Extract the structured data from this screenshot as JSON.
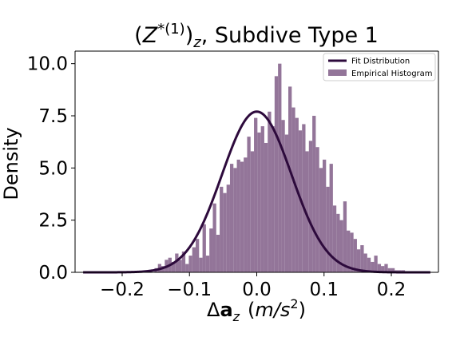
{
  "chart_data": {
    "type": "histogram",
    "title": {
      "lhs_open": "(",
      "lhs_var": "Z",
      "lhs_sup": "*(1)",
      "lhs_close": ")",
      "lhs_sub": "z",
      "rest": ", Subdive Type 1"
    },
    "xlabel": {
      "delta": "Δ",
      "bold": "a",
      "sub": "z",
      "units_open": "(",
      "units_m": "m",
      "units_slash": "/",
      "units_s": "s",
      "units_exp": "2",
      "units_close": ")"
    },
    "ylabel": "Density",
    "xlim": [
      -0.27,
      0.27
    ],
    "ylim": [
      0,
      10.6
    ],
    "xticks": [
      -0.2,
      -0.1,
      0.0,
      0.1,
      0.2
    ],
    "xtick_labels": [
      "−0.2",
      "−0.1",
      "0.0",
      "0.1",
      "0.2"
    ],
    "yticks": [
      0.0,
      2.5,
      5.0,
      7.5,
      10.0
    ],
    "ytick_labels": [
      "0.0",
      "2.5",
      "5.0",
      "7.5",
      "10.0"
    ],
    "grid": false,
    "legend_position": "top-right",
    "bar_color": "#937599",
    "line_color": "#2d0a3c",
    "series": [
      {
        "name": "Fit Distribution",
        "kind": "line",
        "distribution": "normal",
        "mean": 0.0,
        "std": 0.0518,
        "x_range": [
          -0.258,
          0.258
        ]
      },
      {
        "name": "Empirical Histogram",
        "kind": "histogram",
        "bin_edges_start": -0.152,
        "bin_width": 0.0051,
        "values": [
          0.2,
          0.4,
          0.3,
          0.6,
          0.7,
          0.5,
          0.9,
          0.6,
          1.0,
          0.4,
          0.8,
          1.2,
          1.6,
          0.7,
          2.3,
          0.8,
          2.1,
          3.3,
          1.8,
          4.1,
          3.8,
          4.2,
          5.2,
          5.0,
          5.4,
          5.3,
          5.5,
          6.5,
          5.8,
          7.4,
          6.7,
          7.0,
          6.2,
          7.7,
          7.0,
          9.4,
          10.0,
          7.3,
          6.6,
          8.9,
          7.9,
          7.4,
          6.8,
          7.1,
          5.8,
          6.3,
          7.5,
          6.0,
          5.0,
          5.4,
          4.1,
          5.2,
          3.2,
          2.8,
          2.5,
          3.4,
          2.0,
          1.9,
          1.6,
          1.1,
          1.3,
          0.9,
          0.7,
          0.5,
          0.8,
          0.4,
          0.3,
          0.4,
          0.2,
          0.2,
          0.1,
          0.1,
          0.1
        ]
      }
    ]
  }
}
